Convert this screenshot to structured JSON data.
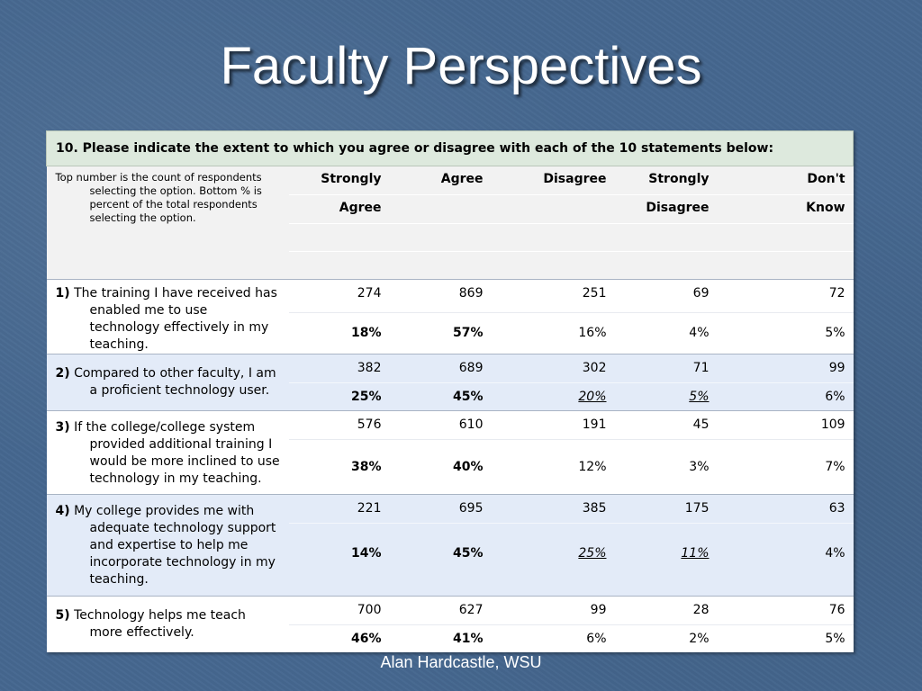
{
  "slide": {
    "title": "Faculty Perspectives",
    "footer": "Alan Hardcastle, WSU"
  },
  "table": {
    "question": "10. Please indicate the extent to which you agree or disagree with each of the 10 statements below:",
    "note": "Top number is the count of respondents selecting the option. Bottom % is percent of the total respondents selecting the option.",
    "headers": [
      {
        "line1": "Strongly",
        "line2": "Agree"
      },
      {
        "line1": "Agree",
        "line2": ""
      },
      {
        "line1": "Disagree",
        "line2": ""
      },
      {
        "line1": "Strongly",
        "line2": "Disagree"
      },
      {
        "line1": "Don't",
        "line2": "Know"
      }
    ],
    "rows": [
      {
        "num": "1)",
        "statement": "The training I have received has enabled me to use technology effectively in my teaching.",
        "counts": [
          "274",
          "869",
          "251",
          "69",
          "72"
        ],
        "percents": [
          "18%",
          "57%",
          "16%",
          "4%",
          "5%"
        ]
      },
      {
        "num": "2)",
        "statement": "Compared to other faculty, I am a proficient technology user.",
        "counts": [
          "382",
          "689",
          "302",
          "71",
          "99"
        ],
        "percents": [
          "25%",
          "45%",
          "20%",
          "5%",
          "6%"
        ]
      },
      {
        "num": "3)",
        "statement": "If the college/college system provided additional training I would be more inclined to use technology in my teaching.",
        "counts": [
          "576",
          "610",
          "191",
          "45",
          "109"
        ],
        "percents": [
          "38%",
          "40%",
          "12%",
          "3%",
          "7%"
        ]
      },
      {
        "num": "4)",
        "statement": "My college provides me with adequate technology support and expertise to help me incorporate technology in my teaching.",
        "counts": [
          "221",
          "695",
          "385",
          "175",
          "63"
        ],
        "percents": [
          "14%",
          "45%",
          "25%",
          "11%",
          "4%"
        ]
      },
      {
        "num": "5)",
        "statement": "Technology helps me teach more effectively.",
        "counts": [
          "700",
          "627",
          "99",
          "28",
          "76"
        ],
        "percents": [
          "46%",
          "41%",
          "6%",
          "2%",
          "5%"
        ]
      }
    ]
  }
}
